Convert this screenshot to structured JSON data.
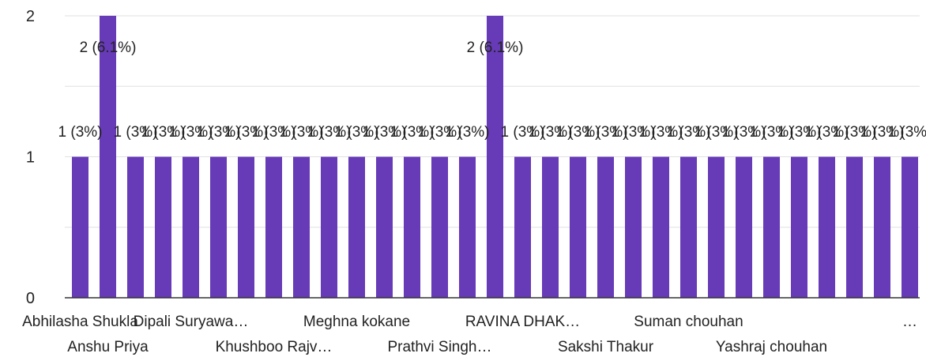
{
  "chart_data": {
    "type": "bar",
    "categories": [
      "Abhilasha Shukla",
      "Anshu Priya",
      "",
      "",
      "Dipali Suryawa…",
      "",
      "",
      "Khushboo Rajv…",
      "",
      "",
      "Meghna kokane",
      "",
      "",
      "Prathvi Singh…",
      "",
      "",
      "RAVINA DHAK…",
      "",
      "",
      "Sakshi Thakur",
      "",
      "",
      "Suman chouhan",
      "",
      "",
      "Yashraj chouhan",
      "",
      "",
      "",
      "",
      "…"
    ],
    "values": [
      1,
      2,
      1,
      1,
      1,
      1,
      1,
      1,
      1,
      1,
      1,
      1,
      1,
      1,
      1,
      2,
      1,
      1,
      1,
      1,
      1,
      1,
      1,
      1,
      1,
      1,
      1,
      1,
      1,
      1,
      1
    ],
    "data_labels": [
      "1 (3%)",
      "2 (6.1%)",
      "1 (3%)",
      "1 (3%)",
      "1 (3%)",
      "1 (3%)",
      "1 (3%)",
      "1 (3%)",
      "1 (3%)",
      "1 (3%)",
      "1 (3%)",
      "1 (3%)",
      "1 (3%)",
      "1 (3%)",
      "1 (3%)",
      "2 (6.1%)",
      "1 (3%)",
      "1 (3%)",
      "1 (3%)",
      "1 (3%)",
      "1 (3%)",
      "1 (3%)",
      "1 (3%)",
      "1 (3%)",
      "1 (3%)",
      "1 (3%)",
      "1 (3%)",
      "1 (3%)",
      "1 (3%)",
      "1 (3%)",
      "1 (3%)"
    ],
    "y_ticks": [
      "0",
      "1",
      "2"
    ],
    "ylim": [
      0,
      2
    ],
    "grid": true,
    "legend": "none",
    "title": "",
    "xlabel": "",
    "ylabel": "",
    "colors": {
      "bar": "#673ab7",
      "grid": "#e0e0e0",
      "axis": "#333333"
    }
  }
}
